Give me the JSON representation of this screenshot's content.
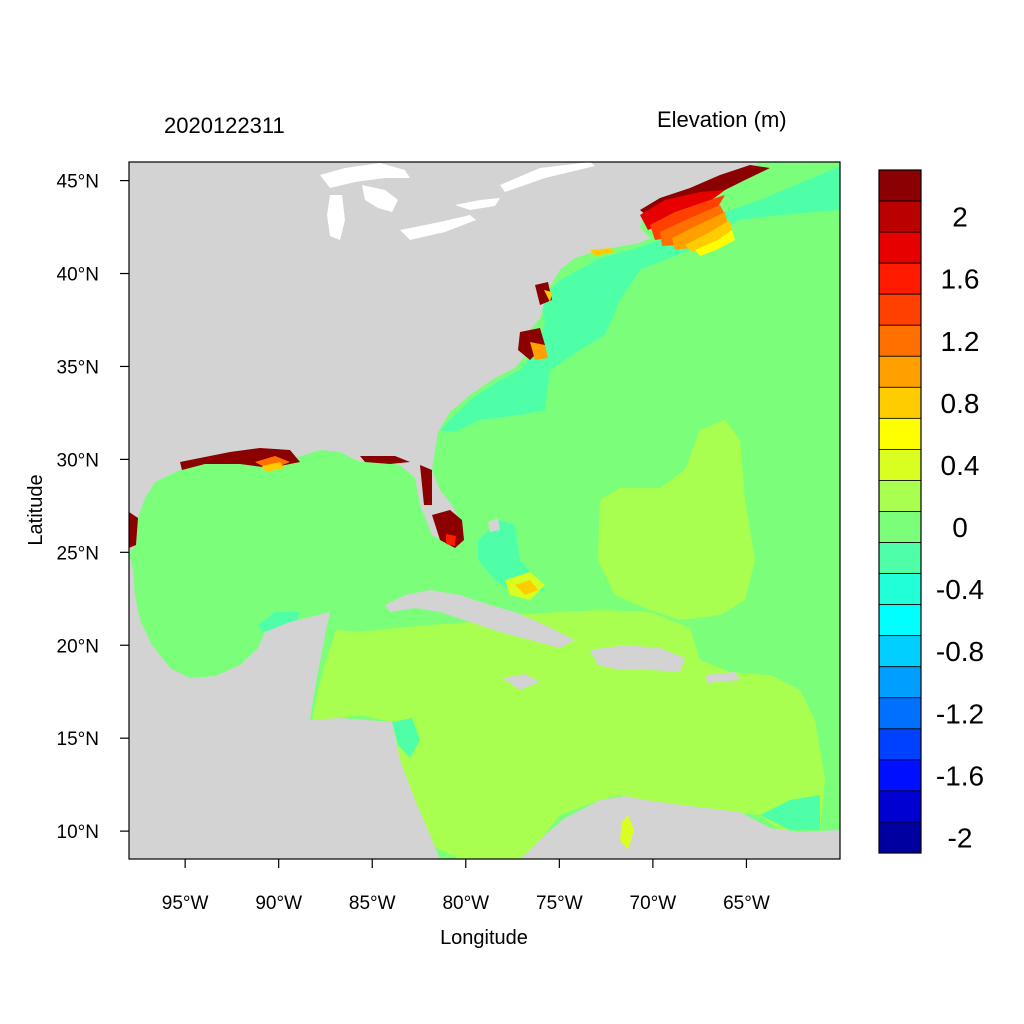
{
  "header": {
    "left_title": "2020122311",
    "right_title": "Elevation (m)"
  },
  "axes": {
    "xlabel": "Longitude",
    "ylabel": "Latitude",
    "lon_range": [
      -98,
      -60
    ],
    "lat_range": [
      8.5,
      46
    ],
    "lon_ticks": [
      -95,
      -90,
      -85,
      -80,
      -75,
      -70,
      -65
    ],
    "lon_tick_labels": [
      "95°W",
      "90°W",
      "85°W",
      "80°W",
      "75°W",
      "70°W",
      "65°W"
    ],
    "lat_ticks": [
      45,
      40,
      35,
      30,
      25,
      20,
      15,
      10
    ],
    "lat_tick_labels": [
      "45°N",
      "40°N",
      "35°N",
      "30°N",
      "25°N",
      "20°N",
      "15°N",
      "10°N"
    ]
  },
  "colorbar": {
    "colors_top_to_bottom": [
      "#8b0000",
      "#bb0000",
      "#e60000",
      "#ff1a00",
      "#ff4000",
      "#ff7000",
      "#ffa000",
      "#ffcc00",
      "#ffff00",
      "#d8ff20",
      "#a8ff50",
      "#7bff7b",
      "#4fffa8",
      "#20ffd8",
      "#00ffff",
      "#00cfff",
      "#009fff",
      "#0070ff",
      "#0040ff",
      "#0010ff",
      "#0000d0",
      "#0000a0"
    ],
    "labels": [
      "2",
      "1.6",
      "1.2",
      "0.8",
      "0.4",
      "0",
      "-0.4",
      "-0.8",
      "-1.2",
      "-1.6",
      "-2"
    ],
    "label_levels": [
      2,
      1.6,
      1.2,
      0.8,
      0.4,
      0,
      -0.4,
      -0.8,
      -1.2,
      -1.6,
      -2
    ]
  },
  "colors": {
    "land": "#d3d3d3",
    "lake": "#ffffff",
    "ocean_base": "#7bff7b",
    "caribbean": "#a8ff50",
    "shelf": "#4fffa8"
  }
}
